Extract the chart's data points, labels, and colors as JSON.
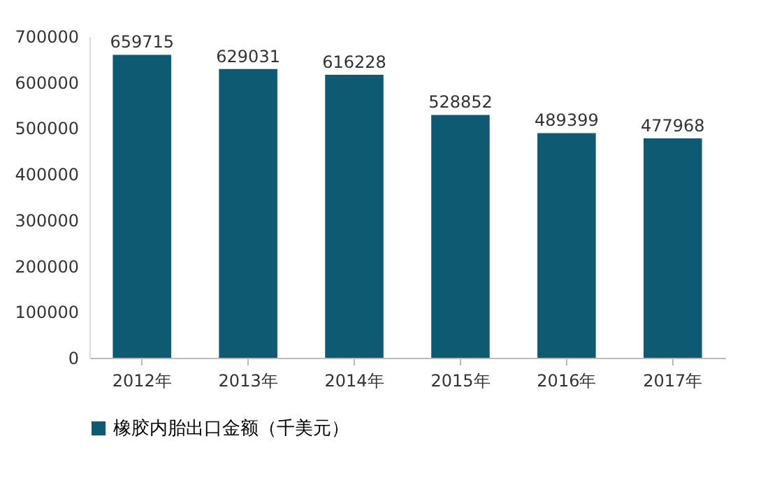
{
  "chart_data": {
    "type": "bar",
    "categories": [
      "2012年",
      "2013年",
      "2014年",
      "2015年",
      "2016年",
      "2017年"
    ],
    "series": [
      {
        "name": "橡胶内胎出口金额（千美元）",
        "color": "#0e5a73",
        "values": [
          659715,
          629031,
          616228,
          528852,
          489399,
          477968
        ]
      }
    ],
    "ylim": [
      0,
      700000
    ],
    "yticks": [
      0,
      100000,
      200000,
      300000,
      400000,
      500000,
      600000,
      700000
    ],
    "data_labels": true,
    "legend": "bottom"
  }
}
